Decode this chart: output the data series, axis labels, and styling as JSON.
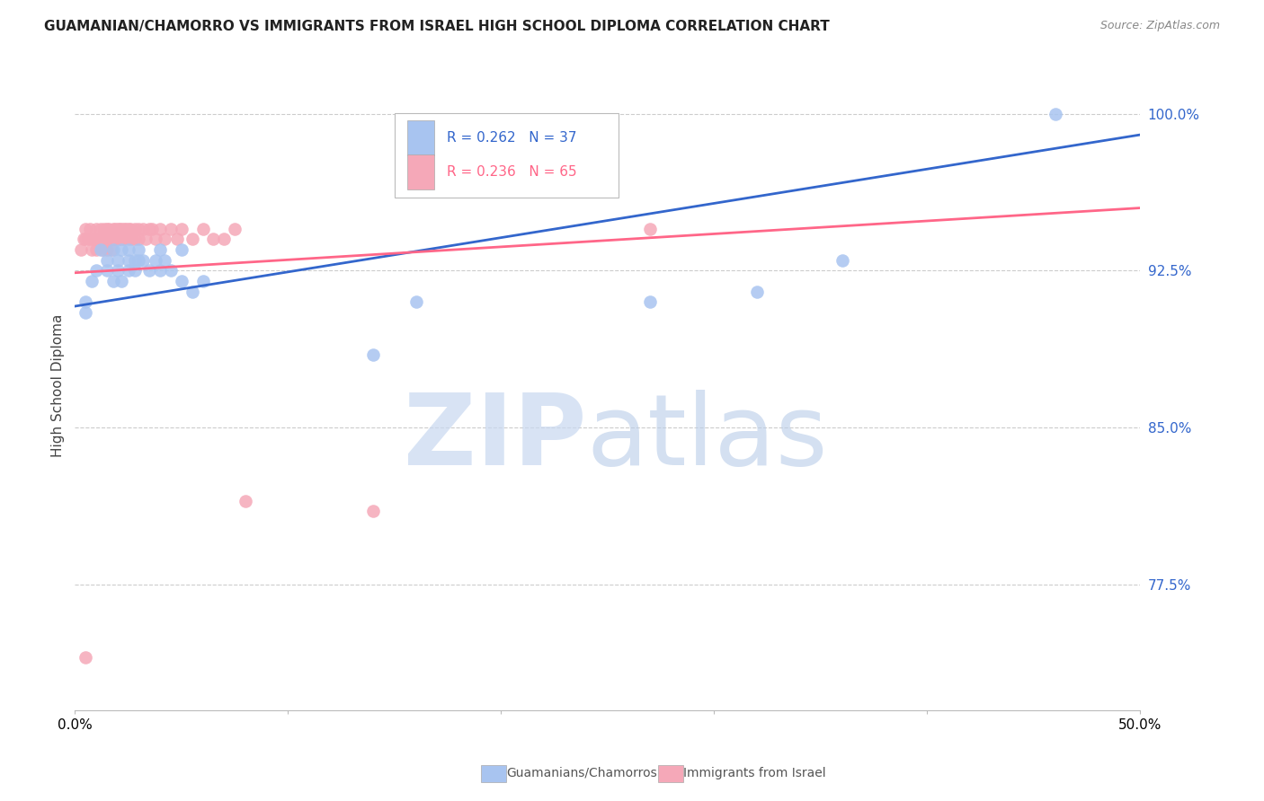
{
  "title": "GUAMANIAN/CHAMORRO VS IMMIGRANTS FROM ISRAEL HIGH SCHOOL DIPLOMA CORRELATION CHART",
  "source": "Source: ZipAtlas.com",
  "ylabel": "High School Diploma",
  "ytick_labels": [
    "100.0%",
    "92.5%",
    "85.0%",
    "77.5%"
  ],
  "ytick_values": [
    1.0,
    0.925,
    0.85,
    0.775
  ],
  "xlim": [
    0.0,
    0.5
  ],
  "ylim": [
    0.715,
    1.025
  ],
  "legend_blue_r": "R = 0.262",
  "legend_blue_n": "N = 37",
  "legend_pink_r": "R = 0.236",
  "legend_pink_n": "N = 65",
  "legend_blue_label": "Guamanians/Chamorros",
  "legend_pink_label": "Immigrants from Israel",
  "blue_color": "#a8c4f0",
  "pink_color": "#f5a8b8",
  "blue_line_color": "#3366CC",
  "pink_line_color": "#FF6688",
  "blue_scatter_x": [
    0.005,
    0.008,
    0.01,
    0.012,
    0.015,
    0.015,
    0.018,
    0.018,
    0.02,
    0.02,
    0.022,
    0.022,
    0.025,
    0.025,
    0.025,
    0.028,
    0.028,
    0.03,
    0.03,
    0.032,
    0.035,
    0.038,
    0.04,
    0.04,
    0.042,
    0.045,
    0.05,
    0.05,
    0.055,
    0.06,
    0.14,
    0.16,
    0.27,
    0.32,
    0.36,
    0.46,
    0.005
  ],
  "blue_scatter_y": [
    0.905,
    0.92,
    0.925,
    0.935,
    0.93,
    0.925,
    0.935,
    0.92,
    0.93,
    0.925,
    0.935,
    0.92,
    0.93,
    0.925,
    0.935,
    0.925,
    0.93,
    0.93,
    0.935,
    0.93,
    0.925,
    0.93,
    0.935,
    0.925,
    0.93,
    0.925,
    0.92,
    0.935,
    0.915,
    0.92,
    0.885,
    0.91,
    0.91,
    0.915,
    0.93,
    1.0,
    0.91
  ],
  "pink_scatter_x": [
    0.003,
    0.004,
    0.005,
    0.005,
    0.006,
    0.007,
    0.008,
    0.008,
    0.009,
    0.01,
    0.01,
    0.01,
    0.012,
    0.012,
    0.013,
    0.013,
    0.014,
    0.014,
    0.015,
    0.015,
    0.015,
    0.016,
    0.016,
    0.017,
    0.017,
    0.018,
    0.018,
    0.019,
    0.019,
    0.02,
    0.02,
    0.021,
    0.021,
    0.022,
    0.022,
    0.023,
    0.023,
    0.024,
    0.025,
    0.025,
    0.026,
    0.027,
    0.028,
    0.028,
    0.03,
    0.03,
    0.032,
    0.033,
    0.035,
    0.036,
    0.038,
    0.04,
    0.042,
    0.045,
    0.048,
    0.05,
    0.055,
    0.06,
    0.065,
    0.07,
    0.075,
    0.08,
    0.14,
    0.27,
    0.005
  ],
  "pink_scatter_y": [
    0.935,
    0.94,
    0.945,
    0.94,
    0.94,
    0.945,
    0.94,
    0.935,
    0.94,
    0.945,
    0.94,
    0.935,
    0.945,
    0.94,
    0.935,
    0.94,
    0.945,
    0.94,
    0.945,
    0.94,
    0.935,
    0.94,
    0.945,
    0.94,
    0.935,
    0.945,
    0.94,
    0.945,
    0.94,
    0.945,
    0.94,
    0.945,
    0.94,
    0.945,
    0.94,
    0.945,
    0.94,
    0.945,
    0.945,
    0.94,
    0.945,
    0.94,
    0.945,
    0.94,
    0.945,
    0.94,
    0.945,
    0.94,
    0.945,
    0.945,
    0.94,
    0.945,
    0.94,
    0.945,
    0.94,
    0.945,
    0.94,
    0.945,
    0.94,
    0.94,
    0.945,
    0.815,
    0.81,
    0.945,
    0.74
  ],
  "blue_trendline": [
    0.908,
    0.99
  ],
  "pink_trendline": [
    0.924,
    0.955
  ]
}
